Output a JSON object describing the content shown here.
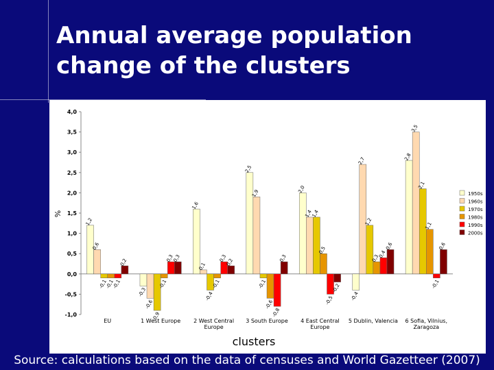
{
  "chart_data": {
    "type": "bar",
    "title": "Annual average population change of the clusters",
    "source": "Source: calculations based on the data of censuses and World Gazetteer (2007)",
    "x_label": "clusters",
    "y_label": "%",
    "categories": [
      "EU",
      "1 West Europe",
      "2 West Central Europe",
      "3 South Europe",
      "4 East Central Europe",
      "5 Dublin, Valencia",
      "6 Sofia, Vilnius, Zaragoza"
    ],
    "series": [
      {
        "name": "1950s",
        "color": "#ffffcc",
        "values": [
          1.2,
          -0.3,
          1.6,
          2.5,
          2.0,
          -0.4,
          2.8
        ],
        "value_labels": [
          "1,2",
          "-0,3",
          "1,6",
          "2,5",
          "2,0",
          "-0,4",
          "2,8"
        ]
      },
      {
        "name": "1960s",
        "color": "#ffd9b0",
        "values": [
          0.6,
          -0.6,
          0.1,
          1.9,
          1.4,
          2.7,
          3.5
        ],
        "value_labels": [
          "0,6",
          "-0,6",
          "0,1",
          "1,9",
          "1,4",
          "2,7",
          "3,5"
        ]
      },
      {
        "name": "1970s",
        "color": "#e6c800",
        "values": [
          -0.1,
          -0.9,
          -0.4,
          -0.1,
          1.4,
          1.2,
          2.1
        ],
        "value_labels": [
          "-0,1",
          "-0,9",
          "-0,4",
          "-0,1",
          "1,4",
          "1,2",
          "2,1"
        ]
      },
      {
        "name": "1980s",
        "color": "#e69500",
        "values": [
          -0.1,
          -0.1,
          -0.1,
          -0.6,
          0.5,
          0.3,
          1.1
        ],
        "value_labels": [
          "-0,1",
          "-0,1",
          "-0,1",
          "-0,6",
          "0,5",
          "0,3",
          "1,1"
        ]
      },
      {
        "name": "1990s",
        "color": "#ff0000",
        "values": [
          -0.1,
          0.3,
          0.3,
          -0.8,
          -0.5,
          0.4,
          -0.1
        ],
        "value_labels": [
          "-0,1",
          "0,3",
          "0,3",
          "-0,8",
          "-0,5",
          "0,4",
          "-0,1"
        ]
      },
      {
        "name": "2000s",
        "color": "#800000",
        "values": [
          0.2,
          0.3,
          0.2,
          0.3,
          -0.2,
          0.6,
          0.6
        ],
        "value_labels": [
          "0,2",
          "0,3",
          "0,2",
          "0,3",
          "-0,2",
          "0,6",
          "0,6"
        ]
      }
    ],
    "ylim": [
      -1,
      4
    ],
    "yticks": [
      {
        "value": -1,
        "label": "-1,0"
      },
      {
        "value": -0.5,
        "label": "-0,5"
      },
      {
        "value": 0,
        "label": "0,0"
      },
      {
        "value": 0.5,
        "label": "0,5"
      },
      {
        "value": 1,
        "label": "1,0"
      },
      {
        "value": 1.5,
        "label": "1,5"
      },
      {
        "value": 2,
        "label": "2,0"
      },
      {
        "value": 2.5,
        "label": "2,5"
      },
      {
        "value": 3,
        "label": "3,0"
      },
      {
        "value": 3.5,
        "label": "3,5"
      },
      {
        "value": 4,
        "label": "4,0"
      }
    ],
    "legend": "right"
  }
}
